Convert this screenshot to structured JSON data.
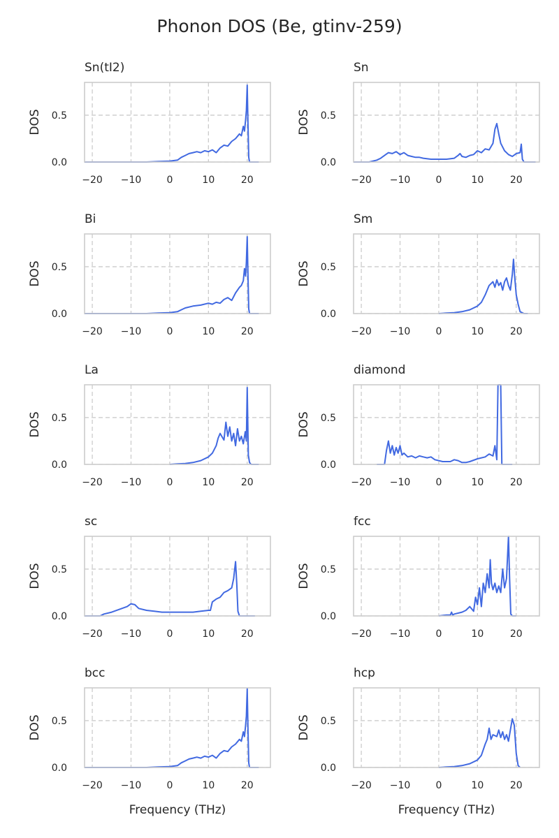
{
  "title": "Phonon DOS (Be, gtinv-259)",
  "colors": {
    "line": "#4169e1",
    "grid": "#cccccc"
  },
  "chart_data": [
    {
      "type": "line",
      "title": "Sn(tI2)",
      "ylabel": "DOS",
      "xlabel": "",
      "xlim": [
        -22,
        26
      ],
      "ylim": [
        0,
        0.85
      ],
      "xticks": [
        -20,
        -10,
        0,
        10,
        20
      ],
      "yticks": [
        0.0,
        0.5
      ],
      "grid": true,
      "series": [
        {
          "x": [
            -22,
            -6,
            -3,
            0,
            2,
            3,
            4,
            5,
            6,
            7,
            8,
            9,
            10,
            11,
            12,
            13,
            14,
            15,
            16,
            17,
            18,
            18.5,
            19,
            19.3,
            19.6,
            19.8,
            20,
            20.2,
            20.4,
            20.6,
            23
          ],
          "y": [
            0.0,
            0.0,
            0.005,
            0.01,
            0.02,
            0.05,
            0.07,
            0.09,
            0.1,
            0.11,
            0.1,
            0.12,
            0.11,
            0.13,
            0.1,
            0.15,
            0.18,
            0.17,
            0.22,
            0.25,
            0.3,
            0.28,
            0.38,
            0.33,
            0.45,
            0.55,
            0.82,
            0.4,
            0.05,
            0.0,
            0.0
          ]
        }
      ]
    },
    {
      "type": "line",
      "title": "Sn",
      "ylabel": "DOS",
      "xlabel": "",
      "xlim": [
        -22,
        26
      ],
      "ylim": [
        0,
        0.85
      ],
      "xticks": [
        -20,
        -10,
        0,
        10,
        20
      ],
      "yticks": [
        0.0,
        0.5
      ],
      "grid": true,
      "series": [
        {
          "x": [
            -22,
            -18,
            -16,
            -15,
            -14,
            -13,
            -12,
            -11,
            -10,
            -9,
            -8,
            -7,
            -6,
            -5,
            -4,
            -2,
            0,
            2,
            4,
            5,
            5.5,
            6,
            7,
            8,
            9,
            10,
            11,
            12,
            13,
            14,
            14.5,
            15,
            15.5,
            16,
            17,
            18,
            19,
            20,
            21,
            21.3,
            21.6,
            22,
            25
          ],
          "y": [
            0.0,
            0.0,
            0.02,
            0.04,
            0.07,
            0.1,
            0.09,
            0.11,
            0.08,
            0.1,
            0.07,
            0.06,
            0.05,
            0.05,
            0.04,
            0.03,
            0.03,
            0.03,
            0.04,
            0.07,
            0.09,
            0.06,
            0.05,
            0.07,
            0.08,
            0.12,
            0.1,
            0.14,
            0.13,
            0.2,
            0.35,
            0.41,
            0.3,
            0.2,
            0.12,
            0.08,
            0.06,
            0.09,
            0.1,
            0.19,
            0.03,
            0.0,
            0.0
          ]
        }
      ]
    },
    {
      "type": "line",
      "title": "Bi",
      "ylabel": "DOS",
      "xlabel": "",
      "xlim": [
        -22,
        26
      ],
      "ylim": [
        0,
        0.85
      ],
      "xticks": [
        -20,
        -10,
        0,
        10,
        20
      ],
      "yticks": [
        0.0,
        0.5
      ],
      "grid": true,
      "series": [
        {
          "x": [
            -22,
            -6,
            -3,
            0,
            2,
            3,
            4,
            6,
            8,
            10,
            11,
            12,
            13,
            14,
            15,
            16,
            17,
            18,
            18.5,
            19,
            19.3,
            19.6,
            19.8,
            20,
            20.2,
            20.4,
            20.6,
            23
          ],
          "y": [
            0.0,
            0.0,
            0.005,
            0.01,
            0.02,
            0.04,
            0.06,
            0.08,
            0.09,
            0.11,
            0.1,
            0.12,
            0.11,
            0.15,
            0.17,
            0.14,
            0.22,
            0.28,
            0.3,
            0.35,
            0.48,
            0.4,
            0.55,
            0.82,
            0.4,
            0.05,
            0.0,
            0.0
          ]
        }
      ]
    },
    {
      "type": "line",
      "title": "Sm",
      "ylabel": "DOS",
      "xlabel": "",
      "xlim": [
        -22,
        26
      ],
      "ylim": [
        0,
        0.85
      ],
      "xticks": [
        -20,
        -10,
        0,
        10,
        20
      ],
      "yticks": [
        0.0,
        0.5
      ],
      "grid": true,
      "series": [
        {
          "x": [
            0,
            2,
            4,
            6,
            8,
            10,
            11,
            12,
            13,
            14,
            14.5,
            15,
            15.5,
            16,
            16.5,
            17,
            17.5,
            18,
            18.5,
            19,
            19.3,
            19.6,
            20,
            20.5,
            21,
            22,
            23
          ],
          "y": [
            0.0,
            0.005,
            0.01,
            0.02,
            0.04,
            0.08,
            0.12,
            0.2,
            0.3,
            0.34,
            0.28,
            0.36,
            0.3,
            0.33,
            0.25,
            0.34,
            0.38,
            0.3,
            0.25,
            0.42,
            0.58,
            0.4,
            0.2,
            0.1,
            0.02,
            0.0,
            0.0
          ]
        }
      ]
    },
    {
      "type": "line",
      "title": "La",
      "ylabel": "DOS",
      "xlabel": "",
      "xlim": [
        -22,
        26
      ],
      "ylim": [
        0,
        0.85
      ],
      "xticks": [
        -20,
        -10,
        0,
        10,
        20
      ],
      "yticks": [
        0.0,
        0.5
      ],
      "grid": true,
      "series": [
        {
          "x": [
            0,
            2,
            4,
            6,
            8,
            10,
            11,
            12,
            12.5,
            13,
            14,
            14.5,
            15,
            15.5,
            16,
            16.5,
            17,
            17.5,
            18,
            18.5,
            19,
            19.5,
            19.8,
            20,
            20.3,
            20.6,
            21,
            23
          ],
          "y": [
            0.0,
            0.005,
            0.01,
            0.02,
            0.04,
            0.08,
            0.12,
            0.2,
            0.28,
            0.33,
            0.26,
            0.45,
            0.3,
            0.4,
            0.25,
            0.33,
            0.2,
            0.38,
            0.25,
            0.3,
            0.22,
            0.35,
            0.25,
            0.82,
            0.1,
            0.02,
            0.0,
            0.0
          ]
        }
      ]
    },
    {
      "type": "line",
      "title": "diamond",
      "ylabel": "DOS",
      "xlabel": "",
      "xlim": [
        -22,
        26
      ],
      "ylim": [
        0,
        0.85
      ],
      "xticks": [
        -20,
        -10,
        0,
        10,
        20
      ],
      "yticks": [
        0.0,
        0.5
      ],
      "grid": true,
      "series": [
        {
          "x": [
            -16,
            -14,
            -13.5,
            -13,
            -12.5,
            -12,
            -11.5,
            -11,
            -10.5,
            -10,
            -9.5,
            -9,
            -8,
            -7,
            -6,
            -5,
            -4,
            -3,
            -2,
            -1,
            0,
            1,
            2,
            3,
            4,
            5,
            6,
            7,
            8,
            10,
            12,
            13,
            14,
            14.5,
            15,
            15.3,
            15.6,
            16,
            16.3,
            17,
            19
          ],
          "y": [
            0.0,
            0.0,
            0.15,
            0.25,
            0.12,
            0.2,
            0.1,
            0.18,
            0.12,
            0.2,
            0.1,
            0.12,
            0.08,
            0.09,
            0.07,
            0.09,
            0.08,
            0.07,
            0.08,
            0.05,
            0.04,
            0.03,
            0.03,
            0.03,
            0.05,
            0.04,
            0.02,
            0.02,
            0.03,
            0.06,
            0.08,
            0.11,
            0.09,
            0.2,
            0.05,
            0.85,
            0.85,
            0.85,
            0.0,
            0.0,
            0.0
          ]
        }
      ]
    },
    {
      "type": "line",
      "title": "sc",
      "ylabel": "DOS",
      "xlabel": "",
      "xlim": [
        -22,
        26
      ],
      "ylim": [
        0,
        0.85
      ],
      "xticks": [
        -20,
        -10,
        0,
        10,
        20
      ],
      "yticks": [
        0.0,
        0.5
      ],
      "grid": true,
      "series": [
        {
          "x": [
            -22,
            -18,
            -17,
            -15,
            -13,
            -11,
            -10,
            -9,
            -8,
            -6,
            -4,
            -2,
            0,
            2,
            4,
            6,
            8,
            10,
            10.5,
            11,
            12,
            13,
            14,
            15,
            16,
            16.5,
            17,
            17.3,
            17.6,
            18,
            19,
            22
          ],
          "y": [
            0.0,
            0.0,
            0.02,
            0.04,
            0.07,
            0.1,
            0.13,
            0.12,
            0.08,
            0.06,
            0.05,
            0.04,
            0.04,
            0.04,
            0.04,
            0.04,
            0.05,
            0.06,
            0.06,
            0.15,
            0.18,
            0.2,
            0.25,
            0.27,
            0.3,
            0.4,
            0.58,
            0.35,
            0.05,
            0.0,
            0.0,
            0.0
          ]
        }
      ]
    },
    {
      "type": "line",
      "title": "fcc",
      "ylabel": "DOS",
      "xlabel": "",
      "xlim": [
        -22,
        26
      ],
      "ylim": [
        0,
        0.85
      ],
      "xticks": [
        -20,
        -10,
        0,
        10,
        20
      ],
      "yticks": [
        0.0,
        0.5
      ],
      "grid": true,
      "series": [
        {
          "x": [
            0,
            2,
            3,
            3.3,
            3.6,
            4,
            6,
            7,
            8,
            9,
            9.5,
            10,
            10.5,
            11,
            11.5,
            12,
            12.5,
            13,
            13.3,
            13.6,
            14,
            14.5,
            15,
            15.5,
            16,
            16.5,
            17,
            17.5,
            18,
            18.3,
            18.6,
            19,
            20
          ],
          "y": [
            0.0,
            0.01,
            0.01,
            0.04,
            0.01,
            0.02,
            0.04,
            0.06,
            0.1,
            0.05,
            0.2,
            0.12,
            0.3,
            0.1,
            0.35,
            0.25,
            0.45,
            0.3,
            0.6,
            0.35,
            0.28,
            0.35,
            0.25,
            0.32,
            0.25,
            0.5,
            0.3,
            0.4,
            0.85,
            0.4,
            0.02,
            0.0,
            0.0
          ]
        }
      ]
    },
    {
      "type": "line",
      "title": "bcc",
      "ylabel": "DOS",
      "xlabel": "Frequency (THz)",
      "xlim": [
        -22,
        26
      ],
      "ylim": [
        0,
        0.85
      ],
      "xticks": [
        -20,
        -10,
        0,
        10,
        20
      ],
      "yticks": [
        0.0,
        0.5
      ],
      "grid": true,
      "series": [
        {
          "x": [
            -22,
            -6,
            -3,
            0,
            2,
            3,
            4,
            5,
            6,
            7,
            8,
            9,
            10,
            11,
            12,
            13,
            14,
            15,
            16,
            17,
            18,
            18.5,
            19,
            19.3,
            19.6,
            19.8,
            20,
            20.2,
            20.4,
            20.6,
            23
          ],
          "y": [
            0.0,
            0.0,
            0.005,
            0.01,
            0.02,
            0.05,
            0.07,
            0.09,
            0.1,
            0.11,
            0.1,
            0.12,
            0.11,
            0.13,
            0.1,
            0.15,
            0.18,
            0.17,
            0.22,
            0.25,
            0.3,
            0.28,
            0.38,
            0.33,
            0.45,
            0.55,
            0.84,
            0.4,
            0.05,
            0.0,
            0.0
          ]
        }
      ]
    },
    {
      "type": "line",
      "title": "hcp",
      "ylabel": "DOS",
      "xlabel": "Frequency (THz)",
      "xlim": [
        -22,
        26
      ],
      "ylim": [
        0,
        0.85
      ],
      "xticks": [
        -20,
        -10,
        0,
        10,
        20
      ],
      "yticks": [
        0.0,
        0.5
      ],
      "grid": true,
      "series": [
        {
          "x": [
            0,
            2,
            4,
            6,
            8,
            10,
            11,
            12,
            12.5,
            13,
            13.5,
            14,
            15,
            15.5,
            16,
            16.5,
            17,
            17.5,
            18,
            18.5,
            19,
            19.5,
            20,
            20.5,
            21
          ],
          "y": [
            0.0,
            0.005,
            0.01,
            0.02,
            0.04,
            0.08,
            0.13,
            0.25,
            0.3,
            0.42,
            0.3,
            0.35,
            0.33,
            0.4,
            0.32,
            0.38,
            0.3,
            0.35,
            0.28,
            0.4,
            0.52,
            0.45,
            0.15,
            0.02,
            0.0
          ]
        }
      ]
    }
  ]
}
